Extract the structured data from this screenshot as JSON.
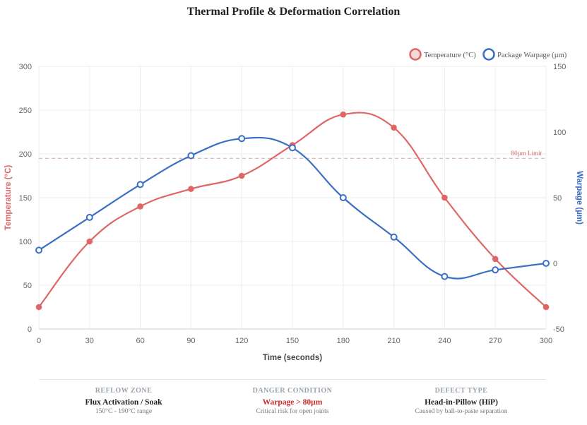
{
  "title": "Thermal Profile & Deformation Correlation",
  "chart_data": {
    "type": "line",
    "x": [
      0,
      30,
      60,
      90,
      120,
      150,
      180,
      210,
      240,
      270,
      300
    ],
    "xlabel": "Time (seconds)",
    "xlim": [
      0,
      300
    ],
    "xticks": [
      0,
      30,
      60,
      90,
      120,
      150,
      180,
      210,
      240,
      270,
      300
    ],
    "y_left": {
      "label": "Temperature (°C)",
      "lim": [
        0,
        300
      ],
      "ticks": [
        0,
        50,
        100,
        150,
        200,
        250,
        300
      ]
    },
    "y_right": {
      "label": "Warpage (µm)",
      "lim": [
        -50,
        150
      ],
      "ticks": [
        -50,
        0,
        50,
        100,
        150
      ]
    },
    "series": [
      {
        "name": "Temperature (°C)",
        "axis": "left",
        "color": "#e06666",
        "values": [
          25,
          100,
          140,
          160,
          175,
          210,
          245,
          230,
          150,
          80,
          25
        ]
      },
      {
        "name": "Package Warpage (µm)",
        "axis": "right",
        "color": "#3a6fc4",
        "values": [
          10,
          35,
          60,
          82,
          95,
          88,
          50,
          20,
          -10,
          -5,
          0
        ]
      }
    ],
    "threshold": {
      "axis": "right",
      "value": 80,
      "label": "80µm Limit"
    },
    "legend": "top-right",
    "grid": true
  },
  "footer": [
    {
      "heading": "REFLOW ZONE",
      "value": "Flux Activation / Soak",
      "sub": "150°C - 190°C range",
      "style": "normal"
    },
    {
      "heading": "DANGER CONDITION",
      "value": "Warpage > 80µm",
      "sub": "Critical risk for open joints",
      "style": "danger"
    },
    {
      "heading": "DEFECT TYPE",
      "value": "Head-in-Pillow (HiP)",
      "sub": "Caused by ball-to-paste separation",
      "style": "normal"
    }
  ]
}
